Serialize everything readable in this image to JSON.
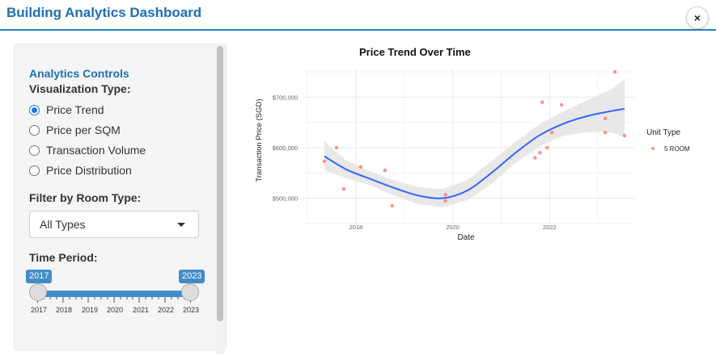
{
  "window": {
    "title": "Building Analytics Dashboard",
    "close_label": "×"
  },
  "sidebar": {
    "title": "Analytics Controls",
    "viz_label": "Visualization Type:",
    "viz_options": [
      "Price Trend",
      "Price per SQM",
      "Transaction Volume",
      "Price Distribution"
    ],
    "viz_selected": "Price Trend",
    "room_filter_label": "Filter by Room Type:",
    "room_filter_value": "All Types",
    "period_label": "Time Period:",
    "period_min": "2017",
    "period_max": "2023",
    "period_ticks": [
      "2017",
      "2018",
      "2019",
      "2020",
      "2021",
      "2022",
      "2023"
    ]
  },
  "colors": {
    "accent": "#1d6fb3",
    "slider": "#428bca",
    "trend_line": "#3366ff",
    "points": "#f8766d",
    "ribbon": "#e5e5e5"
  },
  "chart_data": {
    "type": "scatter",
    "title": "Price Trend Over Time",
    "xlabel": "Date",
    "ylabel": "Transaction Price (SGD)",
    "x_ticks": [
      "2018",
      "2020",
      "2022"
    ],
    "y_ticks": [
      "$500,000",
      "$600,000",
      "$700,000"
    ],
    "xlim": [
      2016.9,
      2023.75
    ],
    "ylim": [
      448000,
      755000
    ],
    "legend": {
      "title": "Unit Type",
      "position": "right",
      "entries": [
        "5 ROOM"
      ]
    },
    "series": [
      {
        "name": "5 ROOM",
        "points": [
          [
            2017.35,
            573000
          ],
          [
            2017.6,
            600000
          ],
          [
            2017.75,
            518000
          ],
          [
            2018.1,
            562000
          ],
          [
            2018.6,
            555000
          ],
          [
            2018.75,
            485000
          ],
          [
            2019.85,
            507000
          ],
          [
            2019.85,
            495000
          ],
          [
            2021.7,
            580000
          ],
          [
            2021.8,
            590000
          ],
          [
            2021.85,
            690000
          ],
          [
            2021.95,
            600000
          ],
          [
            2022.05,
            630000
          ],
          [
            2022.25,
            685000
          ],
          [
            2023.15,
            658000
          ],
          [
            2023.15,
            630000
          ],
          [
            2023.35,
            750000
          ],
          [
            2023.55,
            624000
          ]
        ]
      }
    ],
    "smooth": {
      "x": [
        2017.35,
        2017.8,
        2018.3,
        2018.8,
        2019.3,
        2019.8,
        2020.3,
        2020.8,
        2021.3,
        2021.8,
        2022.3,
        2022.8,
        2023.3,
        2023.55
      ],
      "y": [
        583000,
        557000,
        538000,
        520000,
        505000,
        500000,
        515000,
        550000,
        590000,
        625000,
        648000,
        663000,
        673000,
        677000
      ],
      "ci_low": [
        555000,
        540000,
        525000,
        505000,
        488000,
        482000,
        496000,
        528000,
        570000,
        603000,
        624000,
        631000,
        630000,
        620000
      ],
      "ci_high": [
        612000,
        575000,
        553000,
        535000,
        522000,
        518000,
        536000,
        573000,
        612000,
        647000,
        672000,
        695000,
        717000,
        736000
      ]
    }
  }
}
